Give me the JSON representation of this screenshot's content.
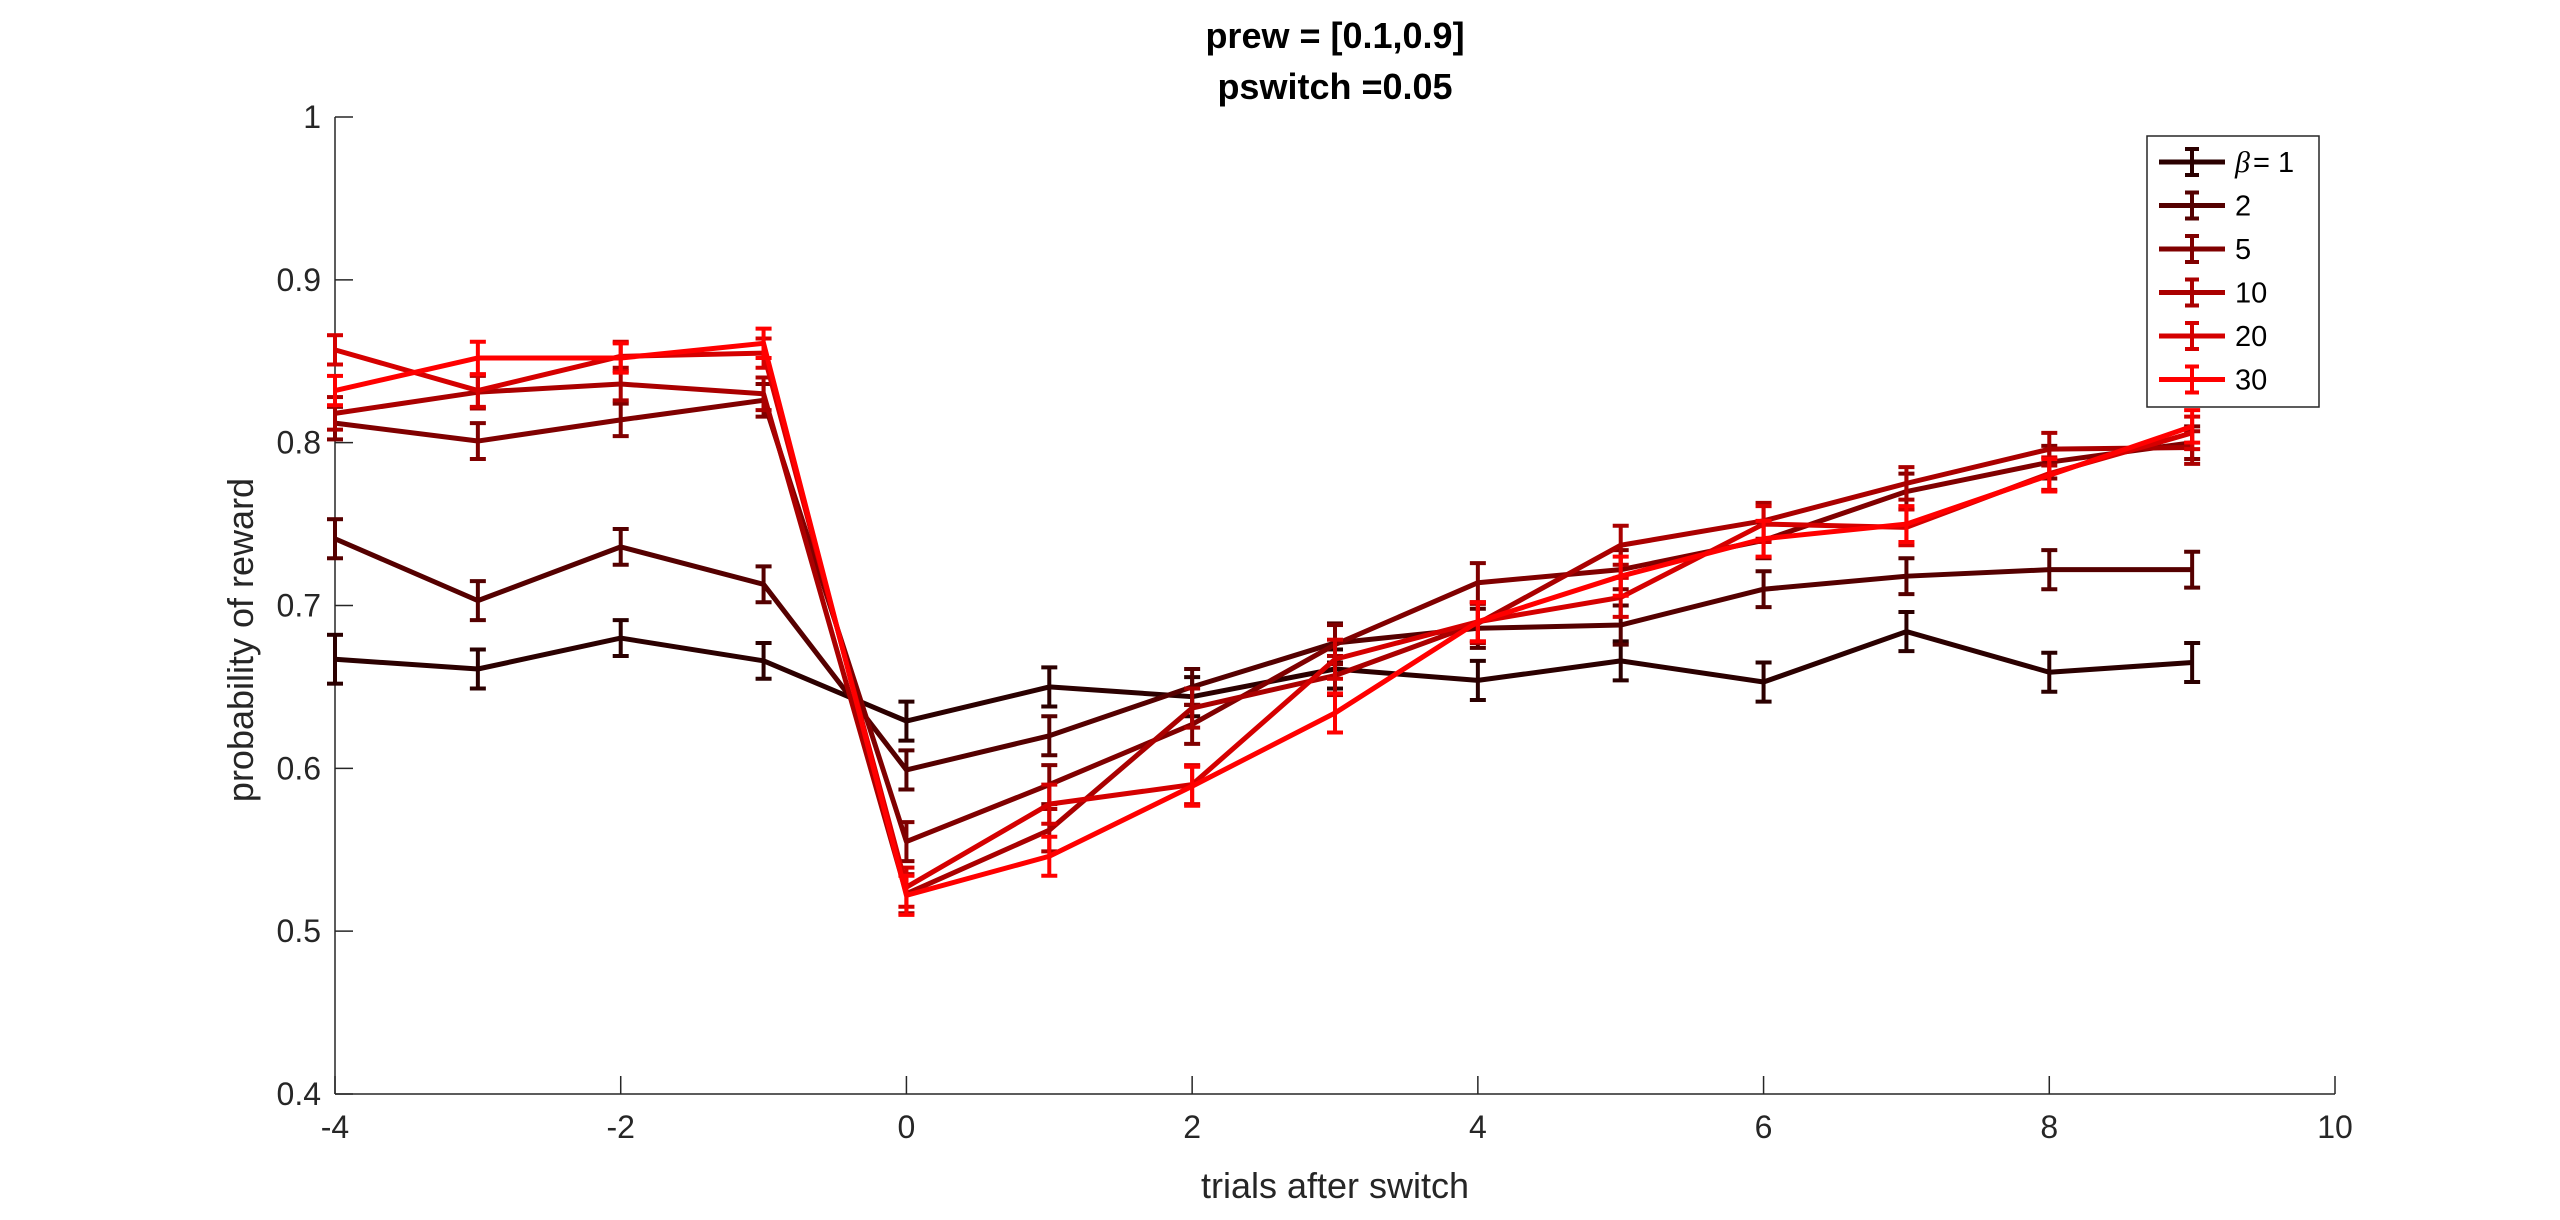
{
  "chart_data": {
    "type": "line",
    "title_lines": [
      "prew = [0.1,0.9]",
      "pswitch =0.05"
    ],
    "xlabel": "trials after switch",
    "ylabel": "probability of reward",
    "xlim": [
      -4,
      10
    ],
    "ylim": [
      0.4,
      1
    ],
    "xticks": [
      -4,
      -2,
      0,
      2,
      4,
      6,
      8,
      10
    ],
    "xtick_labels": [
      "-4",
      "-2",
      "0",
      "2",
      "4",
      "6",
      "8",
      "10"
    ],
    "yticks": [
      0.4,
      0.5,
      0.6,
      0.7,
      0.8,
      0.9,
      1
    ],
    "ytick_labels": [
      "0.4",
      "0.5",
      "0.6",
      "0.7",
      "0.8",
      "0.9",
      "1"
    ],
    "grid": false,
    "legend_position": "top-right",
    "legend_beta_symbol": "β",
    "x": [
      -4,
      -3,
      -2,
      -1,
      0,
      1,
      2,
      3,
      4,
      5,
      6,
      7,
      8,
      9
    ],
    "series": [
      {
        "name": "= 1",
        "legend_label": "= 1",
        "color": "#2b0000",
        "values": [
          0.667,
          0.661,
          0.68,
          0.666,
          0.629,
          0.65,
          0.644,
          0.661,
          0.654,
          0.666,
          0.653,
          0.684,
          0.659,
          0.665
        ],
        "errors": [
          0.015,
          0.012,
          0.011,
          0.011,
          0.012,
          0.012,
          0.012,
          0.012,
          0.012,
          0.012,
          0.012,
          0.012,
          0.012,
          0.012
        ]
      },
      {
        "name": "2",
        "legend_label": "2",
        "color": "#550000",
        "values": [
          0.741,
          0.703,
          0.736,
          0.713,
          0.599,
          0.62,
          0.65,
          0.677,
          0.686,
          0.688,
          0.71,
          0.718,
          0.722,
          0.722
        ],
        "errors": [
          0.012,
          0.012,
          0.011,
          0.011,
          0.012,
          0.012,
          0.011,
          0.012,
          0.012,
          0.012,
          0.011,
          0.011,
          0.012,
          0.011
        ]
      },
      {
        "name": "5",
        "legend_label": "5",
        "color": "#800000",
        "values": [
          0.812,
          0.801,
          0.814,
          0.826,
          0.555,
          0.59,
          0.627,
          0.676,
          0.714,
          0.722,
          0.74,
          0.77,
          0.788,
          0.8
        ],
        "errors": [
          0.01,
          0.011,
          0.01,
          0.01,
          0.012,
          0.012,
          0.012,
          0.012,
          0.012,
          0.012,
          0.011,
          0.011,
          0.01,
          0.01
        ]
      },
      {
        "name": "10",
        "legend_label": "10",
        "color": "#aa0000",
        "values": [
          0.818,
          0.831,
          0.836,
          0.83,
          0.523,
          0.562,
          0.637,
          0.657,
          0.689,
          0.737,
          0.752,
          0.775,
          0.796,
          0.797
        ],
        "errors": [
          0.01,
          0.01,
          0.01,
          0.01,
          0.012,
          0.013,
          0.012,
          0.012,
          0.012,
          0.012,
          0.011,
          0.01,
          0.01,
          0.01
        ]
      },
      {
        "name": "20",
        "legend_label": "20",
        "color": "#d50000",
        "values": [
          0.857,
          0.832,
          0.853,
          0.855,
          0.527,
          0.578,
          0.59,
          0.667,
          0.69,
          0.705,
          0.75,
          0.748,
          0.781,
          0.806
        ],
        "errors": [
          0.009,
          0.01,
          0.009,
          0.009,
          0.012,
          0.012,
          0.012,
          0.012,
          0.012,
          0.012,
          0.011,
          0.011,
          0.01,
          0.01
        ]
      },
      {
        "name": "30",
        "legend_label": "30",
        "color": "#ff0000",
        "values": [
          0.832,
          0.852,
          0.852,
          0.861,
          0.522,
          0.546,
          0.589,
          0.634,
          0.69,
          0.718,
          0.741,
          0.75,
          0.78,
          0.81
        ],
        "errors": [
          0.009,
          0.01,
          0.009,
          0.009,
          0.012,
          0.012,
          0.012,
          0.012,
          0.012,
          0.012,
          0.011,
          0.011,
          0.01,
          0.01
        ]
      }
    ]
  }
}
